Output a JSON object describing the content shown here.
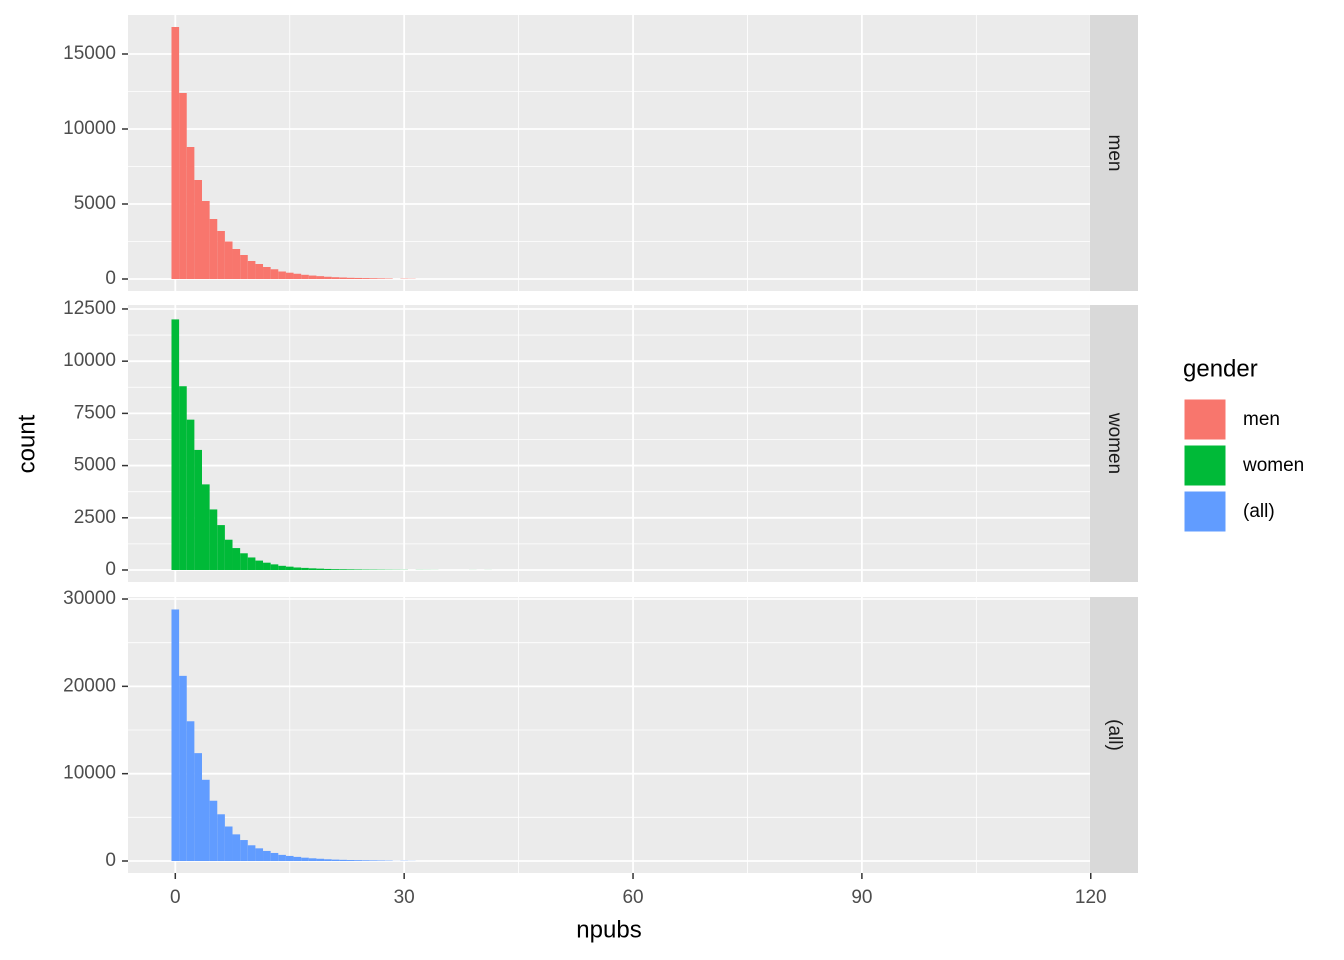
{
  "x_label": "npubs",
  "y_label": "count",
  "legend": {
    "title": "gender"
  },
  "chart_data": [
    {
      "type": "histogram",
      "name": "men",
      "color": "#f8766d",
      "bins": [
        -0.5,
        0.5,
        1.5,
        2.5,
        3.5,
        4.5,
        5.5,
        6.5,
        7.5,
        8.5,
        9.5,
        10.5,
        11.5,
        12.5,
        13.5,
        14.5,
        15.5,
        16.5,
        17.5,
        18.5,
        19.5,
        20.5,
        21.5,
        22.5,
        23.5,
        24.5,
        25.5,
        26.5,
        27.5,
        28.5,
        29.5,
        30.5,
        31.5
      ],
      "values": [
        16800,
        12400,
        8800,
        6600,
        5200,
        4000,
        3200,
        2500,
        2000,
        1600,
        1200,
        1000,
        800,
        650,
        500,
        420,
        350,
        280,
        230,
        190,
        150,
        120,
        100,
        80,
        70,
        60,
        50,
        40,
        30,
        0,
        20,
        15
      ],
      "xlim": [
        -6.2,
        119.9
      ],
      "xticks": [
        0,
        30,
        60,
        90,
        120
      ],
      "ylim": [
        -800,
        17600
      ],
      "yticks": [
        0,
        5000,
        10000,
        15000
      ],
      "grid": true
    },
    {
      "type": "histogram",
      "name": "women",
      "color": "#00ba38",
      "bins": [
        -0.5,
        0.5,
        1.5,
        2.5,
        3.5,
        4.5,
        5.5,
        6.5,
        7.5,
        8.5,
        9.5,
        10.5,
        11.5,
        12.5,
        13.5,
        14.5,
        15.5,
        16.5,
        17.5,
        18.5,
        19.5,
        20.5,
        21.5,
        22.5,
        23.5,
        24.5,
        25.5,
        26.5,
        27.5,
        28.5,
        29.5,
        30.5,
        31.5,
        32.5,
        33.5,
        34.5,
        35.5,
        36.5,
        37.5,
        38.5,
        39.5,
        40.5,
        41.5
      ],
      "values": [
        12000,
        8800,
        7200,
        5750,
        4100,
        2900,
        2150,
        1450,
        1050,
        800,
        600,
        450,
        350,
        270,
        200,
        160,
        120,
        100,
        80,
        65,
        50,
        40,
        35,
        30,
        25,
        20,
        18,
        15,
        12,
        10,
        8,
        0,
        6,
        5,
        4,
        0,
        0,
        0,
        0,
        3,
        0,
        3
      ],
      "xlim": [
        -6.2,
        119.9
      ],
      "xticks": [
        0,
        30,
        60,
        90,
        120
      ],
      "ylim": [
        -575,
        12690
      ],
      "yticks": [
        0,
        2500,
        5000,
        7500,
        10000,
        12500
      ],
      "grid": true
    },
    {
      "type": "histogram",
      "name": "(all)",
      "color": "#619cff",
      "bins": [
        -0.5,
        0.5,
        1.5,
        2.5,
        3.5,
        4.5,
        5.5,
        6.5,
        7.5,
        8.5,
        9.5,
        10.5,
        11.5,
        12.5,
        13.5,
        14.5,
        15.5,
        16.5,
        17.5,
        18.5,
        19.5,
        20.5,
        21.5,
        22.5,
        23.5,
        24.5,
        25.5,
        26.5,
        27.5,
        28.5,
        29.5,
        30.5,
        31.5
      ],
      "values": [
        28800,
        21200,
        16000,
        12350,
        9300,
        6900,
        5350,
        3950,
        3050,
        2400,
        1800,
        1450,
        1150,
        920,
        700,
        580,
        470,
        380,
        310,
        255,
        200,
        160,
        135,
        110,
        95,
        80,
        68,
        55,
        42,
        10,
        28,
        15
      ],
      "xlim": [
        -6.2,
        119.9
      ],
      "xticks": [
        0,
        30,
        60,
        90,
        120
      ],
      "ylim": [
        -1374,
        30230
      ],
      "yticks": [
        0,
        10000,
        20000,
        30000
      ],
      "grid": true
    }
  ]
}
